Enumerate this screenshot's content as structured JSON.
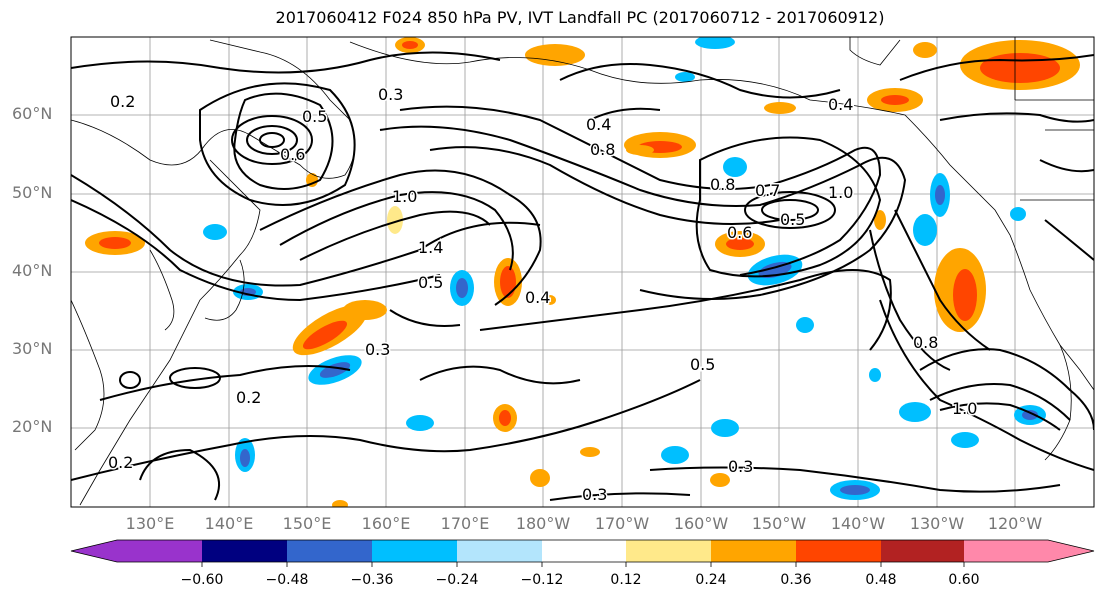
{
  "title": "2017060412 F024 850 hPa PV, IVT Landfall PC (2017060712 - 2017060912)",
  "lat_labels": [
    "60°N",
    "50°N",
    "40°N",
    "30°N",
    "20°N"
  ],
  "lon_labels": [
    "130°E",
    "140°E",
    "150°E",
    "160°E",
    "170°E",
    "180°W",
    "170°W",
    "160°W",
    "150°W",
    "140°W",
    "130°W",
    "120°W"
  ],
  "contour_labels": [
    "0.5",
    "0.3",
    "0.2",
    "0.6",
    "0.4",
    "0.8",
    "1.0",
    "1.4",
    "0.7",
    "0.5",
    "0.3",
    "0.8",
    "0.6",
    "1.0",
    "0.2",
    "0.3",
    "0.5",
    "1.0",
    "0.2",
    "0.4",
    "0.5",
    "0.3",
    "0.8",
    "0.4"
  ],
  "colorbar": {
    "ticks": [
      "−0.60",
      "−0.48",
      "−0.36",
      "−0.24",
      "−0.12",
      "0.12",
      "0.24",
      "0.36",
      "0.48",
      "0.60"
    ],
    "colors": [
      "#9933cc",
      "#000080",
      "#3366cc",
      "#00bfff",
      "#b3e5fc",
      "#ffffff",
      "#ffe98a",
      "#ffa500",
      "#ff4500",
      "#b22222",
      "#ff88aa"
    ]
  }
}
